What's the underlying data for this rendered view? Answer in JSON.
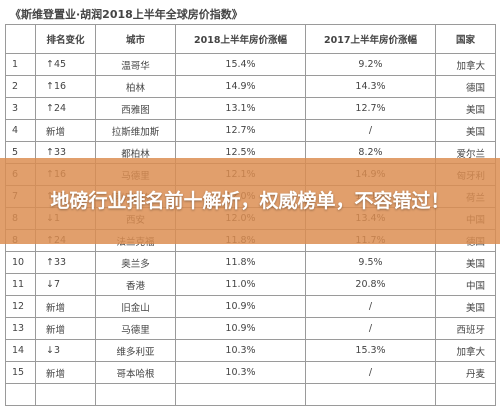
{
  "document": {
    "title": "《斯维登置业·胡润2018上半年全球房价指数》"
  },
  "table": {
    "headers": [
      "",
      "排名变化",
      "城市",
      "2018上半年房价涨幅",
      "2017上半年房价涨幅",
      "国家"
    ],
    "rows": [
      {
        "rank": "1",
        "change": "↑45",
        "city": "温哥华",
        "h1_2018": "15.4%",
        "h1_2017": "9.2%",
        "country": "加拿大"
      },
      {
        "rank": "2",
        "change": "↑16",
        "city": "柏林",
        "h1_2018": "14.9%",
        "h1_2017": "14.3%",
        "country": "德国"
      },
      {
        "rank": "3",
        "change": "↑24",
        "city": "西雅图",
        "h1_2018": "13.1%",
        "h1_2017": "12.7%",
        "country": "美国"
      },
      {
        "rank": "4",
        "change": "新增",
        "city": "拉斯维加斯",
        "h1_2018": "12.7%",
        "h1_2017": "/",
        "country": "美国"
      },
      {
        "rank": "5",
        "change": "↑33",
        "city": "都柏林",
        "h1_2018": "12.5%",
        "h1_2017": "8.2%",
        "country": "爱尔兰"
      },
      {
        "rank": "6",
        "change": "↑16",
        "city": "马德里",
        "h1_2018": "12.1%",
        "h1_2017": "14.9%",
        "country": "匈牙利"
      },
      {
        "rank": "7",
        "change": "↑17",
        "city": "阿姆斯特丹",
        "h1_2018": "12.0%",
        "h1_2017": "11.1%",
        "country": "荷兰"
      },
      {
        "rank": "8",
        "change": "↓1",
        "city": "西安",
        "h1_2018": "12.0%",
        "h1_2017": "13.4%",
        "country": "中国"
      },
      {
        "rank": "8",
        "change": "↑24",
        "city": "法兰克福",
        "h1_2018": "11.8%",
        "h1_2017": "11.7%",
        "country": "德国"
      },
      {
        "rank": "10",
        "change": "↑33",
        "city": "奥兰多",
        "h1_2018": "11.8%",
        "h1_2017": "9.5%",
        "country": "美国"
      },
      {
        "rank": "11",
        "change": "↓7",
        "city": "香港",
        "h1_2018": "11.0%",
        "h1_2017": "20.8%",
        "country": "中国"
      },
      {
        "rank": "12",
        "change": "新增",
        "city": "旧金山",
        "h1_2018": "10.9%",
        "h1_2017": "/",
        "country": "美国"
      },
      {
        "rank": "13",
        "change": "新增",
        "city": "马德里",
        "h1_2018": "10.9%",
        "h1_2017": "/",
        "country": "西班牙"
      },
      {
        "rank": "14",
        "change": "↓3",
        "city": "维多利亚",
        "h1_2018": "10.3%",
        "h1_2017": "15.3%",
        "country": "加拿大"
      },
      {
        "rank": "15",
        "change": "新增",
        "city": "哥本哈根",
        "h1_2018": "10.3%",
        "h1_2017": "/",
        "country": "丹麦"
      },
      {
        "rank": "",
        "change": "",
        "city": "",
        "h1_2018": "",
        "h1_2017": "",
        "country": ""
      }
    ]
  },
  "overlay": {
    "headline": "地磅行业排名前十解析，权威榜单，不容错过！"
  }
}
